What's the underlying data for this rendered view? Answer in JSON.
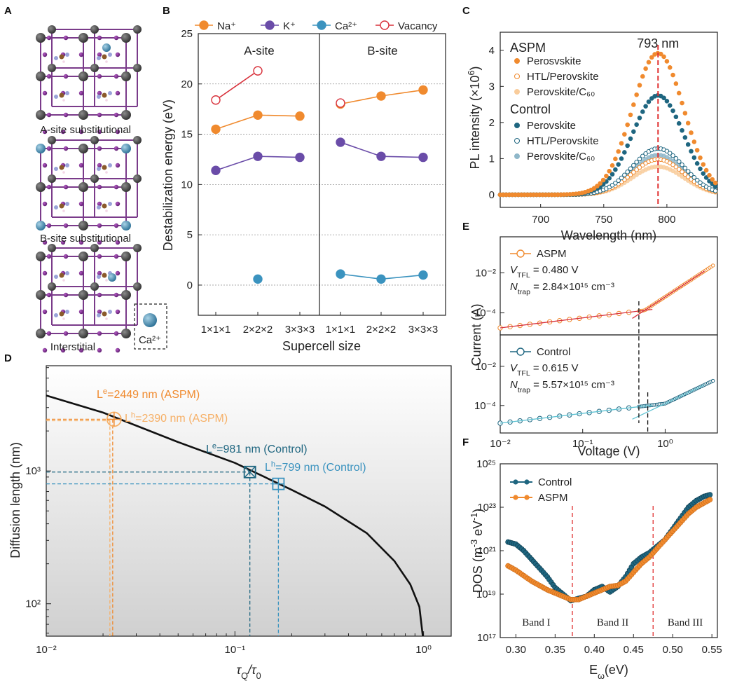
{
  "colors": {
    "aspm": "#f08a2e",
    "aspm_light": "#f6b067",
    "aspm_pale": "#f9cc9b",
    "control": "#1f6680",
    "control_light": "#8fb7c9",
    "na": "#f08a2e",
    "k": "#6a4ca8",
    "ca": "#3b93bf",
    "vacancy": "#d8303a",
    "red_line": "#e03030",
    "axis": "#222222"
  },
  "panel_labels": {
    "a": "A",
    "b": "B",
    "c": "C",
    "d": "D",
    "e": "E",
    "f": "F"
  },
  "panel_a": {
    "captions": [
      "A-site substitutional",
      "B-site substitutional",
      "Interstitial"
    ],
    "inset_label": "Ca²⁺"
  },
  "panel_b": {
    "chart_data": {
      "type": "line",
      "xlabel": "Supercell size",
      "ylabel": "Destabilization energy (eV)",
      "ylim": [
        -3,
        25
      ],
      "yticks": [
        0,
        5,
        10,
        15,
        20,
        25
      ],
      "groups": [
        "A-site",
        "B-site"
      ],
      "categories": [
        "1×1×1",
        "2×2×2",
        "3×3×3"
      ],
      "grid": "horizontal dotted",
      "legend_position": "top",
      "series": [
        {
          "name": "Na⁺",
          "color_key": "na",
          "marker": "filled",
          "a_site": [
            15.5,
            16.9,
            16.8
          ],
          "b_site": [
            18.0,
            18.8,
            19.4
          ]
        },
        {
          "name": "K⁺",
          "color_key": "k",
          "marker": "filled",
          "a_site": [
            11.4,
            12.8,
            12.7
          ],
          "b_site": [
            14.2,
            12.8,
            12.7
          ]
        },
        {
          "name": "Ca²⁺",
          "color_key": "ca",
          "marker": "filled",
          "a_site": [
            null,
            0.6,
            null
          ],
          "b_site": [
            1.1,
            0.6,
            1.0
          ]
        },
        {
          "name": "Vacancy",
          "color_key": "vacancy",
          "marker": "open",
          "a_site": [
            18.4,
            21.3,
            null
          ],
          "b_site": [
            18.1,
            null,
            null
          ]
        }
      ]
    }
  },
  "panel_c": {
    "chart_data": {
      "type": "scatter",
      "xlabel": "Wavelength (nm)",
      "ylabel": "PL intensity (×10⁶)",
      "xlim": [
        668,
        840
      ],
      "ylim": [
        -0.35,
        4.5
      ],
      "xticks": [
        700,
        750,
        800
      ],
      "yticks": [
        0,
        1,
        2,
        3,
        4
      ],
      "peak_label": "793 nm",
      "peak_x": 793,
      "legend_position": "top-left",
      "group_titles": [
        "ASPM",
        "Control"
      ],
      "series": [
        {
          "name": "Perosvskite",
          "group": "ASPM",
          "peak": 3.92,
          "width": 24,
          "color_key": "aspm",
          "marker": "filled"
        },
        {
          "name": "HTL/Perovskite",
          "group": "ASPM",
          "peak": 0.98,
          "width": 24,
          "color_key": "aspm",
          "marker": "open"
        },
        {
          "name": "Perovskite/C₆₀",
          "group": "ASPM",
          "peak": 0.78,
          "width": 24,
          "color_key": "aspm_pale",
          "marker": "filled"
        },
        {
          "name": "Perovskite",
          "group": "Control",
          "peak": 2.75,
          "width": 24,
          "color_key": "control",
          "marker": "filled"
        },
        {
          "name": "HTL/Perovskite",
          "group": "Control",
          "peak": 1.28,
          "width": 24,
          "color_key": "control",
          "marker": "open"
        },
        {
          "name": "Perovskite/C₆₀",
          "group": "Control",
          "peak": 1.1,
          "width": 24,
          "color_key": "control_light",
          "marker": "filled"
        }
      ]
    }
  },
  "panel_d": {
    "chart_data": {
      "type": "line",
      "xlabel": "τQ/τ0",
      "ylabel": "Diffusion length  (nm)",
      "xscale": "log",
      "yscale": "log",
      "xlim": [
        0.01,
        1.4
      ],
      "ylim": [
        57,
        6200
      ],
      "xticks": [
        "10⁻²",
        "10⁻¹",
        "10⁰"
      ],
      "yticks": [
        "10²",
        "10³"
      ],
      "curve": {
        "x": [
          0.01,
          0.02,
          0.05,
          0.1,
          0.2,
          0.3,
          0.5,
          0.7,
          0.85,
          0.95,
          0.99
        ],
        "y": [
          3700,
          2750,
          1650,
          1150,
          720,
          540,
          340,
          210,
          140,
          95,
          57
        ]
      },
      "points": [
        {
          "label": "Lₑᴰ=2449 nm (ASPM)",
          "x": 0.0225,
          "y": 2449,
          "color_key": "aspm",
          "marker": "circle-plus"
        },
        {
          "label": "Lₕᴰ=2390 nm (ASPM)",
          "x": 0.0225,
          "y": 2390,
          "color_key": "aspm",
          "marker": "circle"
        },
        {
          "label": "Lₑᴰ=981 nm (Control)",
          "x": 0.12,
          "y": 981,
          "color_key": "control",
          "marker": "square-x"
        },
        {
          "label": "Lₕᴰ=799 nm (Control)",
          "x": 0.17,
          "y": 799,
          "color_key": "control",
          "marker": "square-plus"
        }
      ],
      "annotations": [
        {
          "main": "L",
          "sup": "e",
          "sub": "D",
          "rest": "=2449 nm (ASPM)",
          "color_key": "aspm"
        },
        {
          "main": "L",
          "sup": "h",
          "sub": "D",
          "rest": "=2390 nm (ASPM)",
          "color_key": "aspm_light"
        },
        {
          "main": "L",
          "sup": "e",
          "sub": "D",
          "rest": "=981 nm (Control)",
          "color_key": "control"
        },
        {
          "main": "L",
          "sup": "h",
          "sub": "D",
          "rest": "=799 nm (Control)",
          "color_key": "ca"
        }
      ]
    }
  },
  "panel_e": {
    "chart_data": {
      "type": "scatter",
      "xlabel": "Voltage (V)",
      "ylabel": "Current (A)",
      "xscale": "log",
      "yscale": "log",
      "xlim": [
        0.01,
        4.3
      ],
      "xticks": [
        "10⁻²",
        "10⁻¹",
        "10⁰"
      ],
      "yticks": [
        "10⁻⁴",
        "10⁻²"
      ],
      "panels": [
        {
          "name": "ASPM",
          "color_key": "aspm",
          "vtfl_text": "= 0.480 V",
          "ntrap_text": "= 2.84×10¹⁵ cm⁻³",
          "vtfl": 0.48,
          "ylim_log": [
            -5.1,
            -0.2
          ],
          "ohmic": {
            "a": -3.75,
            "s": 0.5
          },
          "tfl": {
            "b": -3.2,
            "s": 2.7
          },
          "sat": -0.95
        },
        {
          "name": "Control",
          "color_key": "control",
          "vtfl_text": "= 0.615 V",
          "ntrap_text": "= 5.57×10¹⁵ cm⁻³",
          "vtfl": 0.615,
          "ylim_log": [
            -5.4,
            -0.4
          ],
          "ohmic": {
            "a": -3.9,
            "s": 0.5
          },
          "tfl": {
            "b": -3.9,
            "s": 2.0
          },
          "sat": -1.3
        }
      ]
    }
  },
  "panel_f": {
    "chart_data": {
      "type": "scatter",
      "xlabel": "Eω(eV)",
      "ylabel": "DOS (m⁻³ eV⁻¹)",
      "yscale": "log",
      "xlim": [
        0.28,
        0.557
      ],
      "ylim_log": [
        17,
        25
      ],
      "xticks": [
        0.3,
        0.35,
        0.4,
        0.45,
        0.5,
        0.55
      ],
      "yticks": [
        "10¹⁷",
        "10¹⁹",
        "10²¹",
        "10²³",
        "10²⁵"
      ],
      "band_edges": [
        0.372,
        0.475
      ],
      "bands": [
        "Band I",
        "Band II",
        "Band III"
      ],
      "legend_position": "top-left",
      "series": [
        {
          "name": "Control",
          "color_key": "control",
          "x": [
            0.29,
            0.3,
            0.31,
            0.32,
            0.33,
            0.34,
            0.35,
            0.36,
            0.37,
            0.38,
            0.39,
            0.4,
            0.41,
            0.42,
            0.43,
            0.44,
            0.45,
            0.46,
            0.47,
            0.48,
            0.49,
            0.5,
            0.51,
            0.52,
            0.53,
            0.54,
            0.55
          ],
          "logy": [
            21.4,
            21.3,
            21.0,
            20.6,
            20.2,
            19.8,
            19.3,
            19.0,
            18.7,
            18.8,
            18.9,
            19.2,
            19.35,
            19.1,
            19.35,
            19.8,
            20.4,
            20.7,
            20.9,
            21.2,
            21.5,
            22.0,
            22.5,
            23.0,
            23.3,
            23.5,
            23.6
          ]
        },
        {
          "name": "ASPM",
          "color_key": "aspm",
          "x": [
            0.29,
            0.3,
            0.31,
            0.32,
            0.33,
            0.34,
            0.35,
            0.36,
            0.37,
            0.38,
            0.39,
            0.4,
            0.41,
            0.42,
            0.43,
            0.44,
            0.45,
            0.46,
            0.47,
            0.48,
            0.49,
            0.5,
            0.51,
            0.52,
            0.53,
            0.54,
            0.55
          ],
          "logy": [
            20.3,
            20.1,
            19.85,
            19.6,
            19.4,
            19.2,
            19.05,
            18.9,
            18.75,
            18.75,
            18.9,
            19.05,
            19.2,
            19.35,
            19.4,
            19.6,
            20.0,
            20.4,
            20.7,
            21.1,
            21.5,
            21.9,
            22.3,
            22.7,
            23.0,
            23.2,
            23.4
          ]
        }
      ]
    }
  }
}
